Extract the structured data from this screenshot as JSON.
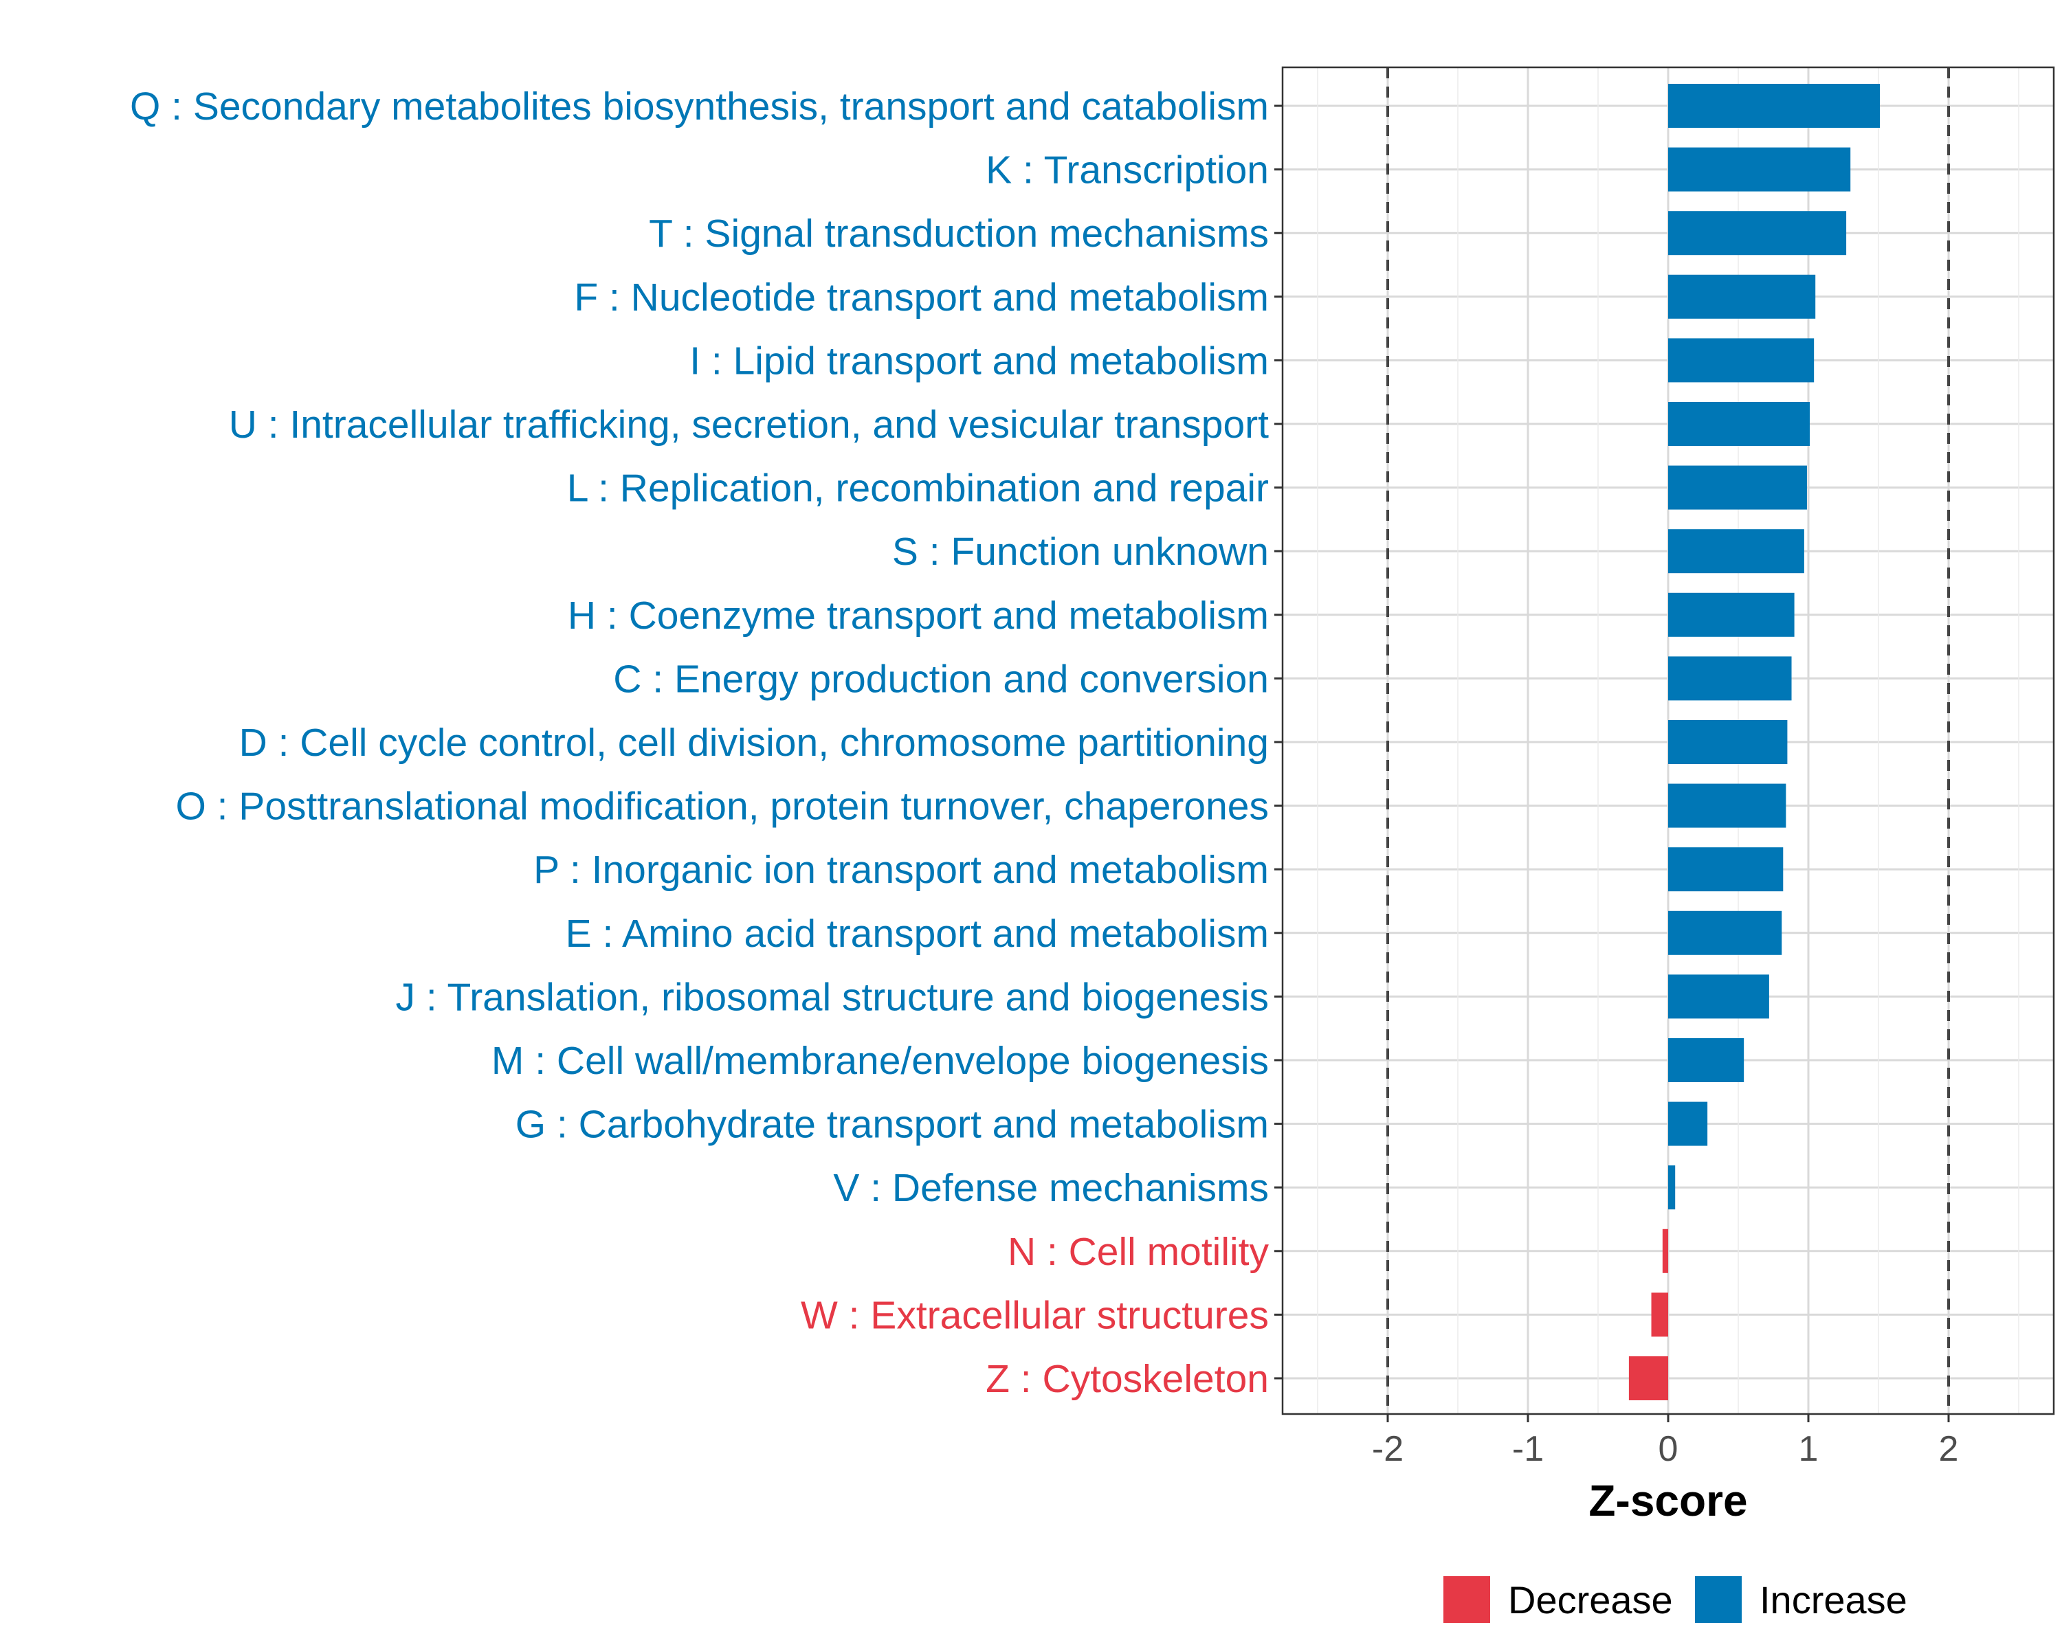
{
  "chart_data": {
    "type": "bar",
    "orientation": "horizontal",
    "xlabel": "Z-score",
    "xlim": [
      -2.75,
      2.75
    ],
    "xticks": [
      -2,
      -1,
      0,
      1,
      2
    ],
    "xtick_labels": [
      "-2",
      "-1",
      "0",
      "1",
      "2"
    ],
    "reference_lines": [
      -2,
      2
    ],
    "grid": true,
    "legend_position": "bottom",
    "legend": [
      {
        "label": "Decrease",
        "color": "#e63946"
      },
      {
        "label": "Increase",
        "color": "#0077b6"
      }
    ],
    "colors": {
      "Decrease": "#e63946",
      "Increase": "#0077b6"
    },
    "categories": [
      "Q : Secondary metabolites biosynthesis, transport and catabolism",
      "K : Transcription",
      "T : Signal transduction mechanisms",
      "F : Nucleotide transport and metabolism",
      "I : Lipid transport and metabolism",
      "U : Intracellular trafficking, secretion, and vesicular transport",
      "L : Replication, recombination and repair",
      "S : Function unknown",
      "H : Coenzyme transport and metabolism",
      "C : Energy production and conversion",
      "D : Cell cycle control, cell division, chromosome partitioning",
      "O : Posttranslational modification, protein turnover, chaperones",
      "P : Inorganic ion transport and metabolism",
      "E : Amino acid transport and metabolism",
      "J : Translation, ribosomal structure and biogenesis",
      "M : Cell wall/membrane/envelope biogenesis",
      "G : Carbohydrate transport and metabolism",
      "V : Defense mechanisms",
      "N : Cell motility",
      "W : Extracellular structures",
      "Z : Cytoskeleton"
    ],
    "values": [
      1.51,
      1.3,
      1.27,
      1.05,
      1.04,
      1.01,
      0.99,
      0.97,
      0.9,
      0.88,
      0.85,
      0.84,
      0.82,
      0.81,
      0.72,
      0.54,
      0.28,
      0.05,
      -0.04,
      -0.12,
      -0.28
    ],
    "groups": [
      "Increase",
      "Increase",
      "Increase",
      "Increase",
      "Increase",
      "Increase",
      "Increase",
      "Increase",
      "Increase",
      "Increase",
      "Increase",
      "Increase",
      "Increase",
      "Increase",
      "Increase",
      "Increase",
      "Increase",
      "Increase",
      "Decrease",
      "Decrease",
      "Decrease"
    ]
  }
}
